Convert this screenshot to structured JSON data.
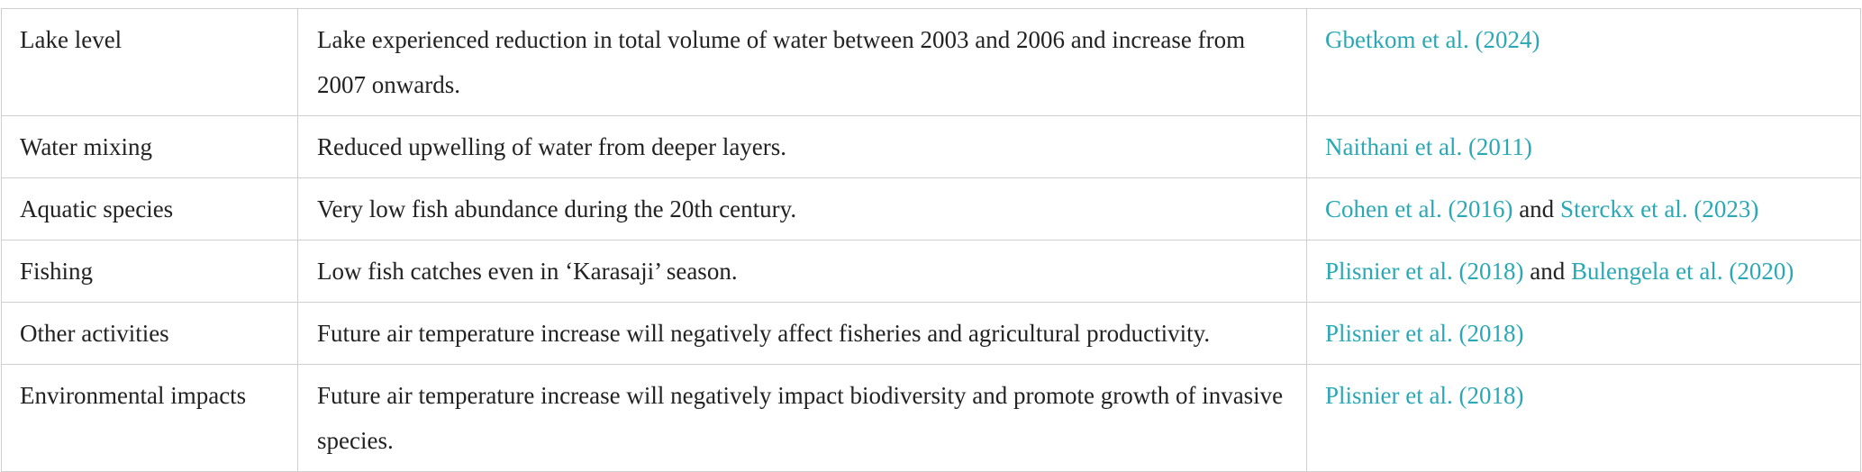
{
  "rows": [
    {
      "topic": "Lake level",
      "finding": "Lake experienced reduction in total volume of water between 2003 and 2006 and increase from 2007 onwards.",
      "refs": [
        "Gbetkom et al. (2024)"
      ],
      "joiner": ""
    },
    {
      "topic": "Water mixing",
      "finding": "Reduced upwelling of water from deeper layers.",
      "refs": [
        "Naithani et al. (2011)"
      ],
      "joiner": ""
    },
    {
      "topic": "Aquatic species",
      "finding": "Very low fish abundance during the 20th century.",
      "refs": [
        "Cohen et al. (2016)",
        "Sterckx et al. (2023)"
      ],
      "joiner": "and"
    },
    {
      "topic": "Fishing",
      "finding": "Low fish catches even in ‘Karasaji’ season.",
      "refs": [
        "Plisnier et al. (2018)",
        "Bulengela et al. (2020)"
      ],
      "joiner": "and"
    },
    {
      "topic": "Other activities",
      "finding": "Future air temperature increase will negatively affect fisheries and agricultural productivity.",
      "refs": [
        "Plisnier et al. (2018)"
      ],
      "joiner": ""
    },
    {
      "topic": "Environmental impacts",
      "finding": "Future air temperature increase will negatively impact biodiversity and promote growth of invasive species.",
      "refs": [
        "Plisnier et al. (2018)"
      ],
      "joiner": ""
    }
  ],
  "colors": {
    "link": "#2aa8b5",
    "text": "#222222",
    "border": "#cfcfcf"
  }
}
